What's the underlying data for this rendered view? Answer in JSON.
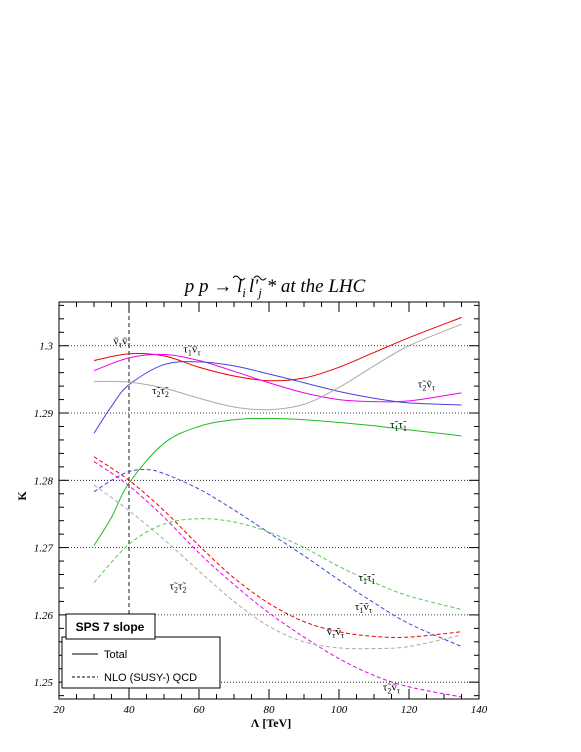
{
  "chart_data": {
    "type": "line",
    "title": "p p → l̃_i l̃'_j * at the LHC",
    "title_parts": {
      "lead": "p p → ",
      "l1": "l",
      "i": "i",
      "l2": "l",
      "prime": "'",
      "j": "j",
      "tail": " * at the LHC"
    },
    "xlabel": "Λ [TeV]",
    "ylabel": "K",
    "xlim": [
      20,
      140
    ],
    "ylim": [
      1.2475,
      1.3065
    ],
    "xticks": [
      20,
      40,
      60,
      80,
      100,
      120,
      140
    ],
    "yticks": [
      1.25,
      1.26,
      1.27,
      1.28,
      1.29,
      1.3
    ],
    "ytick_labels": [
      "1.25",
      "1.26",
      "1.27",
      "1.28",
      "1.29",
      "1.3"
    ],
    "grid": "horizontal dotted lines at y ticks",
    "reference_line": {
      "x": 40,
      "style": "dashed vertical"
    },
    "legend_box": {
      "title": "SPS 7 slope",
      "placement": "bottom-left"
    },
    "legend": [
      {
        "label": "Total",
        "style": "solid"
      },
      {
        "label": "NLO (SUSY-) QCD",
        "style": "dashed"
      }
    ],
    "series": [
      {
        "color": "#ee0000",
        "style": "solid",
        "points": [
          [
            30,
            1.2978
          ],
          [
            40,
            1.2988
          ],
          [
            50,
            1.2985
          ],
          [
            60,
            1.2968
          ],
          [
            70,
            1.2955
          ],
          [
            80,
            1.2948
          ],
          [
            90,
            1.2952
          ],
          [
            100,
            1.2968
          ],
          [
            110,
            1.299
          ],
          [
            120,
            1.3012
          ],
          [
            135,
            1.3042
          ]
        ]
      },
      {
        "color": "#ee00ee",
        "style": "solid",
        "points": [
          [
            30,
            1.2963
          ],
          [
            40,
            1.2982
          ],
          [
            50,
            1.2987
          ],
          [
            60,
            1.2978
          ],
          [
            70,
            1.2962
          ],
          [
            80,
            1.2945
          ],
          [
            90,
            1.293
          ],
          [
            100,
            1.292
          ],
          [
            110,
            1.2917
          ],
          [
            120,
            1.2918
          ],
          [
            135,
            1.293
          ]
        ]
      },
      {
        "color": "#4444dd",
        "style": "solid",
        "points": [
          [
            30,
            1.287
          ],
          [
            35,
            1.291
          ],
          [
            40,
            1.2942
          ],
          [
            50,
            1.2972
          ],
          [
            60,
            1.2976
          ],
          [
            70,
            1.297
          ],
          [
            80,
            1.2958
          ],
          [
            90,
            1.2945
          ],
          [
            100,
            1.2932
          ],
          [
            110,
            1.2922
          ],
          [
            120,
            1.2915
          ],
          [
            135,
            1.2912
          ]
        ]
      },
      {
        "color": "#aaaaaa",
        "style": "solid",
        "points": [
          [
            30,
            1.2947
          ],
          [
            40,
            1.2946
          ],
          [
            50,
            1.2937
          ],
          [
            60,
            1.2922
          ],
          [
            70,
            1.2909
          ],
          [
            80,
            1.2905
          ],
          [
            90,
            1.2913
          ],
          [
            100,
            1.2938
          ],
          [
            110,
            1.297
          ],
          [
            120,
            1.3
          ],
          [
            135,
            1.3032
          ]
        ]
      },
      {
        "color": "#22bb22",
        "style": "solid",
        "points": [
          [
            30,
            1.2703
          ],
          [
            35,
            1.2745
          ],
          [
            40,
            1.2796
          ],
          [
            50,
            1.2855
          ],
          [
            60,
            1.288
          ],
          [
            70,
            1.289
          ],
          [
            80,
            1.2892
          ],
          [
            90,
            1.289
          ],
          [
            100,
            1.2886
          ],
          [
            110,
            1.2881
          ],
          [
            120,
            1.2875
          ],
          [
            135,
            1.2866
          ]
        ]
      },
      {
        "color": "#ee0000",
        "style": "dashed",
        "points": [
          [
            30,
            1.2835
          ],
          [
            40,
            1.28
          ],
          [
            50,
            1.2755
          ],
          [
            60,
            1.2703
          ],
          [
            70,
            1.2655
          ],
          [
            80,
            1.2617
          ],
          [
            90,
            1.259
          ],
          [
            100,
            1.2575
          ],
          [
            110,
            1.2568
          ],
          [
            120,
            1.2567
          ],
          [
            135,
            1.2575
          ]
        ]
      },
      {
        "color": "#ee00ee",
        "style": "dashed",
        "points": [
          [
            30,
            1.2828
          ],
          [
            40,
            1.2792
          ],
          [
            50,
            1.2745
          ],
          [
            60,
            1.2692
          ],
          [
            70,
            1.2645
          ],
          [
            80,
            1.2603
          ],
          [
            90,
            1.2567
          ],
          [
            100,
            1.2535
          ],
          [
            110,
            1.251
          ],
          [
            120,
            1.2493
          ],
          [
            135,
            1.2478
          ]
        ]
      },
      {
        "color": "#4444dd",
        "style": "dashed",
        "points": [
          [
            30,
            1.2783
          ],
          [
            35,
            1.28
          ],
          [
            40,
            1.2813
          ],
          [
            45,
            1.2816
          ],
          [
            50,
            1.281
          ],
          [
            60,
            1.2787
          ],
          [
            70,
            1.2756
          ],
          [
            80,
            1.2722
          ],
          [
            90,
            1.2688
          ],
          [
            100,
            1.2652
          ],
          [
            110,
            1.2618
          ],
          [
            120,
            1.2587
          ],
          [
            135,
            1.2553
          ]
        ]
      },
      {
        "color": "#aaaaaa",
        "style": "dashed",
        "points": [
          [
            30,
            1.2793
          ],
          [
            40,
            1.2755
          ],
          [
            50,
            1.2712
          ],
          [
            60,
            1.2665
          ],
          [
            70,
            1.262
          ],
          [
            80,
            1.2583
          ],
          [
            90,
            1.256
          ],
          [
            100,
            1.2551
          ],
          [
            110,
            1.255
          ],
          [
            120,
            1.2553
          ],
          [
            135,
            1.257
          ]
        ]
      },
      {
        "color": "#55cc55",
        "style": "dashed",
        "points": [
          [
            30,
            1.2648
          ],
          [
            40,
            1.2705
          ],
          [
            50,
            1.2735
          ],
          [
            60,
            1.2743
          ],
          [
            70,
            1.2738
          ],
          [
            80,
            1.2723
          ],
          [
            90,
            1.27
          ],
          [
            100,
            1.2672
          ],
          [
            110,
            1.2648
          ],
          [
            120,
            1.2628
          ],
          [
            135,
            1.2608
          ]
        ]
      }
    ],
    "annotations": [
      {
        "text": "ṽτṽτ",
        "x": 38,
        "y": 1.3002
      },
      {
        "text": "τ̃1ṽτ",
        "x": 58,
        "y": 1.299
      },
      {
        "text": "τ̃2τ̃2",
        "x": 49,
        "y": 1.2928
      },
      {
        "text": "τ̃2ṽτ",
        "x": 125,
        "y": 1.2938
      },
      {
        "text": "τ̃1τ̃1",
        "x": 117,
        "y": 1.2878
      },
      {
        "text": "τ̃1τ̃1",
        "x": 108,
        "y": 1.265
      },
      {
        "text": "τ̃2τ̃2",
        "x": 54,
        "y": 1.2638
      },
      {
        "text": "τ̃1ṽτ",
        "x": 107,
        "y": 1.2607
      },
      {
        "text": "ṽτṽτ",
        "x": 99,
        "y": 1.257
      },
      {
        "text": "τ̃2ṽτ",
        "x": 115,
        "y": 1.2488
      }
    ]
  },
  "annotation_parts": [
    {
      "a": "ṽ",
      "as": "τ",
      "b": "ṽ",
      "bs": "τ"
    },
    {
      "a": "τ̃",
      "as": "1",
      "b": "ṽ",
      "bs": "τ"
    },
    {
      "a": "τ̃",
      "as": "2",
      "b": "τ̃",
      "bs": "2"
    },
    {
      "a": "τ̃",
      "as": "2",
      "b": "ṽ",
      "bs": "τ"
    },
    {
      "a": "τ̃",
      "as": "1",
      "b": "τ̃",
      "bs": "1"
    },
    {
      "a": "τ̃",
      "as": "1",
      "b": "τ̃",
      "bs": "1"
    },
    {
      "a": "τ̃",
      "as": "2",
      "b": "τ̃",
      "bs": "2"
    },
    {
      "a": "τ̃",
      "as": "1",
      "b": "ṽ",
      "bs": "τ"
    },
    {
      "a": "ṽ",
      "as": "τ",
      "b": "ṽ",
      "bs": "τ"
    },
    {
      "a": "τ̃",
      "as": "2",
      "b": "ṽ",
      "bs": "τ"
    }
  ]
}
